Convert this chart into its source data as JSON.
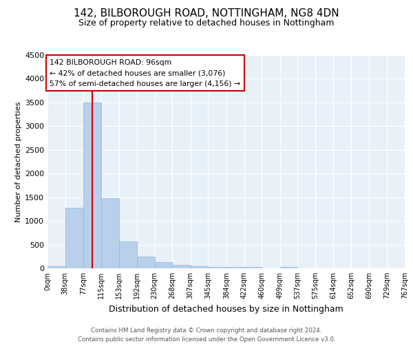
{
  "title": "142, BILBOROUGH ROAD, NOTTINGHAM, NG8 4DN",
  "subtitle": "Size of property relative to detached houses in Nottingham",
  "xlabel": "Distribution of detached houses by size in Nottingham",
  "ylabel": "Number of detached properties",
  "footer_line1": "Contains HM Land Registry data © Crown copyright and database right 2024.",
  "footer_line2": "Contains public sector information licensed under the Open Government Licence v3.0.",
  "bar_edges": [
    0,
    38,
    77,
    115,
    153,
    192,
    230,
    268,
    307,
    345,
    384,
    422,
    460,
    499,
    537,
    575,
    614,
    652,
    690,
    729,
    767
  ],
  "bar_heights": [
    50,
    1280,
    3500,
    1480,
    570,
    240,
    130,
    75,
    45,
    30,
    25,
    35,
    0,
    35,
    0,
    0,
    0,
    0,
    0,
    0
  ],
  "bar_color": "#b8d0ea",
  "bar_edge_color": "#90b4d8",
  "bg_color": "#e8f0f8",
  "grid_color": "#ffffff",
  "property_line_x": 96,
  "property_line_color": "#cc0000",
  "annotation_text_line1": "142 BILBOROUGH ROAD: 96sqm",
  "annotation_text_line2": "← 42% of detached houses are smaller (3,076)",
  "annotation_text_line3": "57% of semi-detached houses are larger (4,156) →",
  "annotation_box_color": "#cc0000",
  "annotation_box_fill": "#ffffff",
  "ylim": [
    0,
    4500
  ],
  "yticks": [
    0,
    500,
    1000,
    1500,
    2000,
    2500,
    3000,
    3500,
    4000,
    4500
  ],
  "tick_labels": [
    "0sqm",
    "38sqm",
    "77sqm",
    "115sqm",
    "153sqm",
    "192sqm",
    "230sqm",
    "268sqm",
    "307sqm",
    "345sqm",
    "384sqm",
    "422sqm",
    "460sqm",
    "499sqm",
    "537sqm",
    "575sqm",
    "614sqm",
    "652sqm",
    "690sqm",
    "729sqm",
    "767sqm"
  ],
  "title_fontsize": 11,
  "subtitle_fontsize": 9,
  "ylabel_fontsize": 8,
  "xlabel_fontsize": 9,
  "ytick_fontsize": 8,
  "xtick_fontsize": 7
}
